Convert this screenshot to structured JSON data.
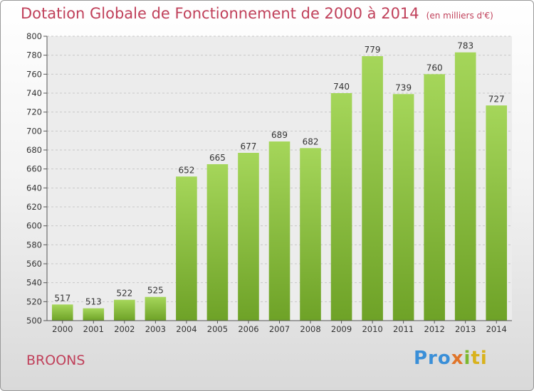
{
  "title": "Dotation Globale de Fonctionnement de 2000 à 2014",
  "unit_note": "(en milliers d'€)",
  "place": "BROONS",
  "brand": {
    "p1": "Pro",
    "p2": "x",
    "p3": "i",
    "p4": "ti"
  },
  "colors": {
    "bar_top": "#a5d65a",
    "bar_bottom": "#6ea227",
    "title": "#c0405a",
    "grid": "#c8c8c8"
  },
  "chart_data": {
    "type": "bar",
    "title": "Dotation Globale de Fonctionnement de 2000 à 2014",
    "subtitle": "(en milliers d'€)",
    "categories": [
      "2000",
      "2001",
      "2002",
      "2003",
      "2004",
      "2005",
      "2006",
      "2007",
      "2008",
      "2009",
      "2010",
      "2011",
      "2012",
      "2013",
      "2014"
    ],
    "values": [
      517,
      513,
      522,
      525,
      652,
      665,
      677,
      689,
      682,
      740,
      779,
      739,
      760,
      783,
      727
    ],
    "yticks": [
      500,
      520,
      540,
      560,
      580,
      600,
      620,
      640,
      660,
      680,
      700,
      720,
      740,
      760,
      780,
      800
    ],
    "ylim": [
      500,
      800
    ],
    "xlabel": "",
    "ylabel": "",
    "grid": true
  }
}
